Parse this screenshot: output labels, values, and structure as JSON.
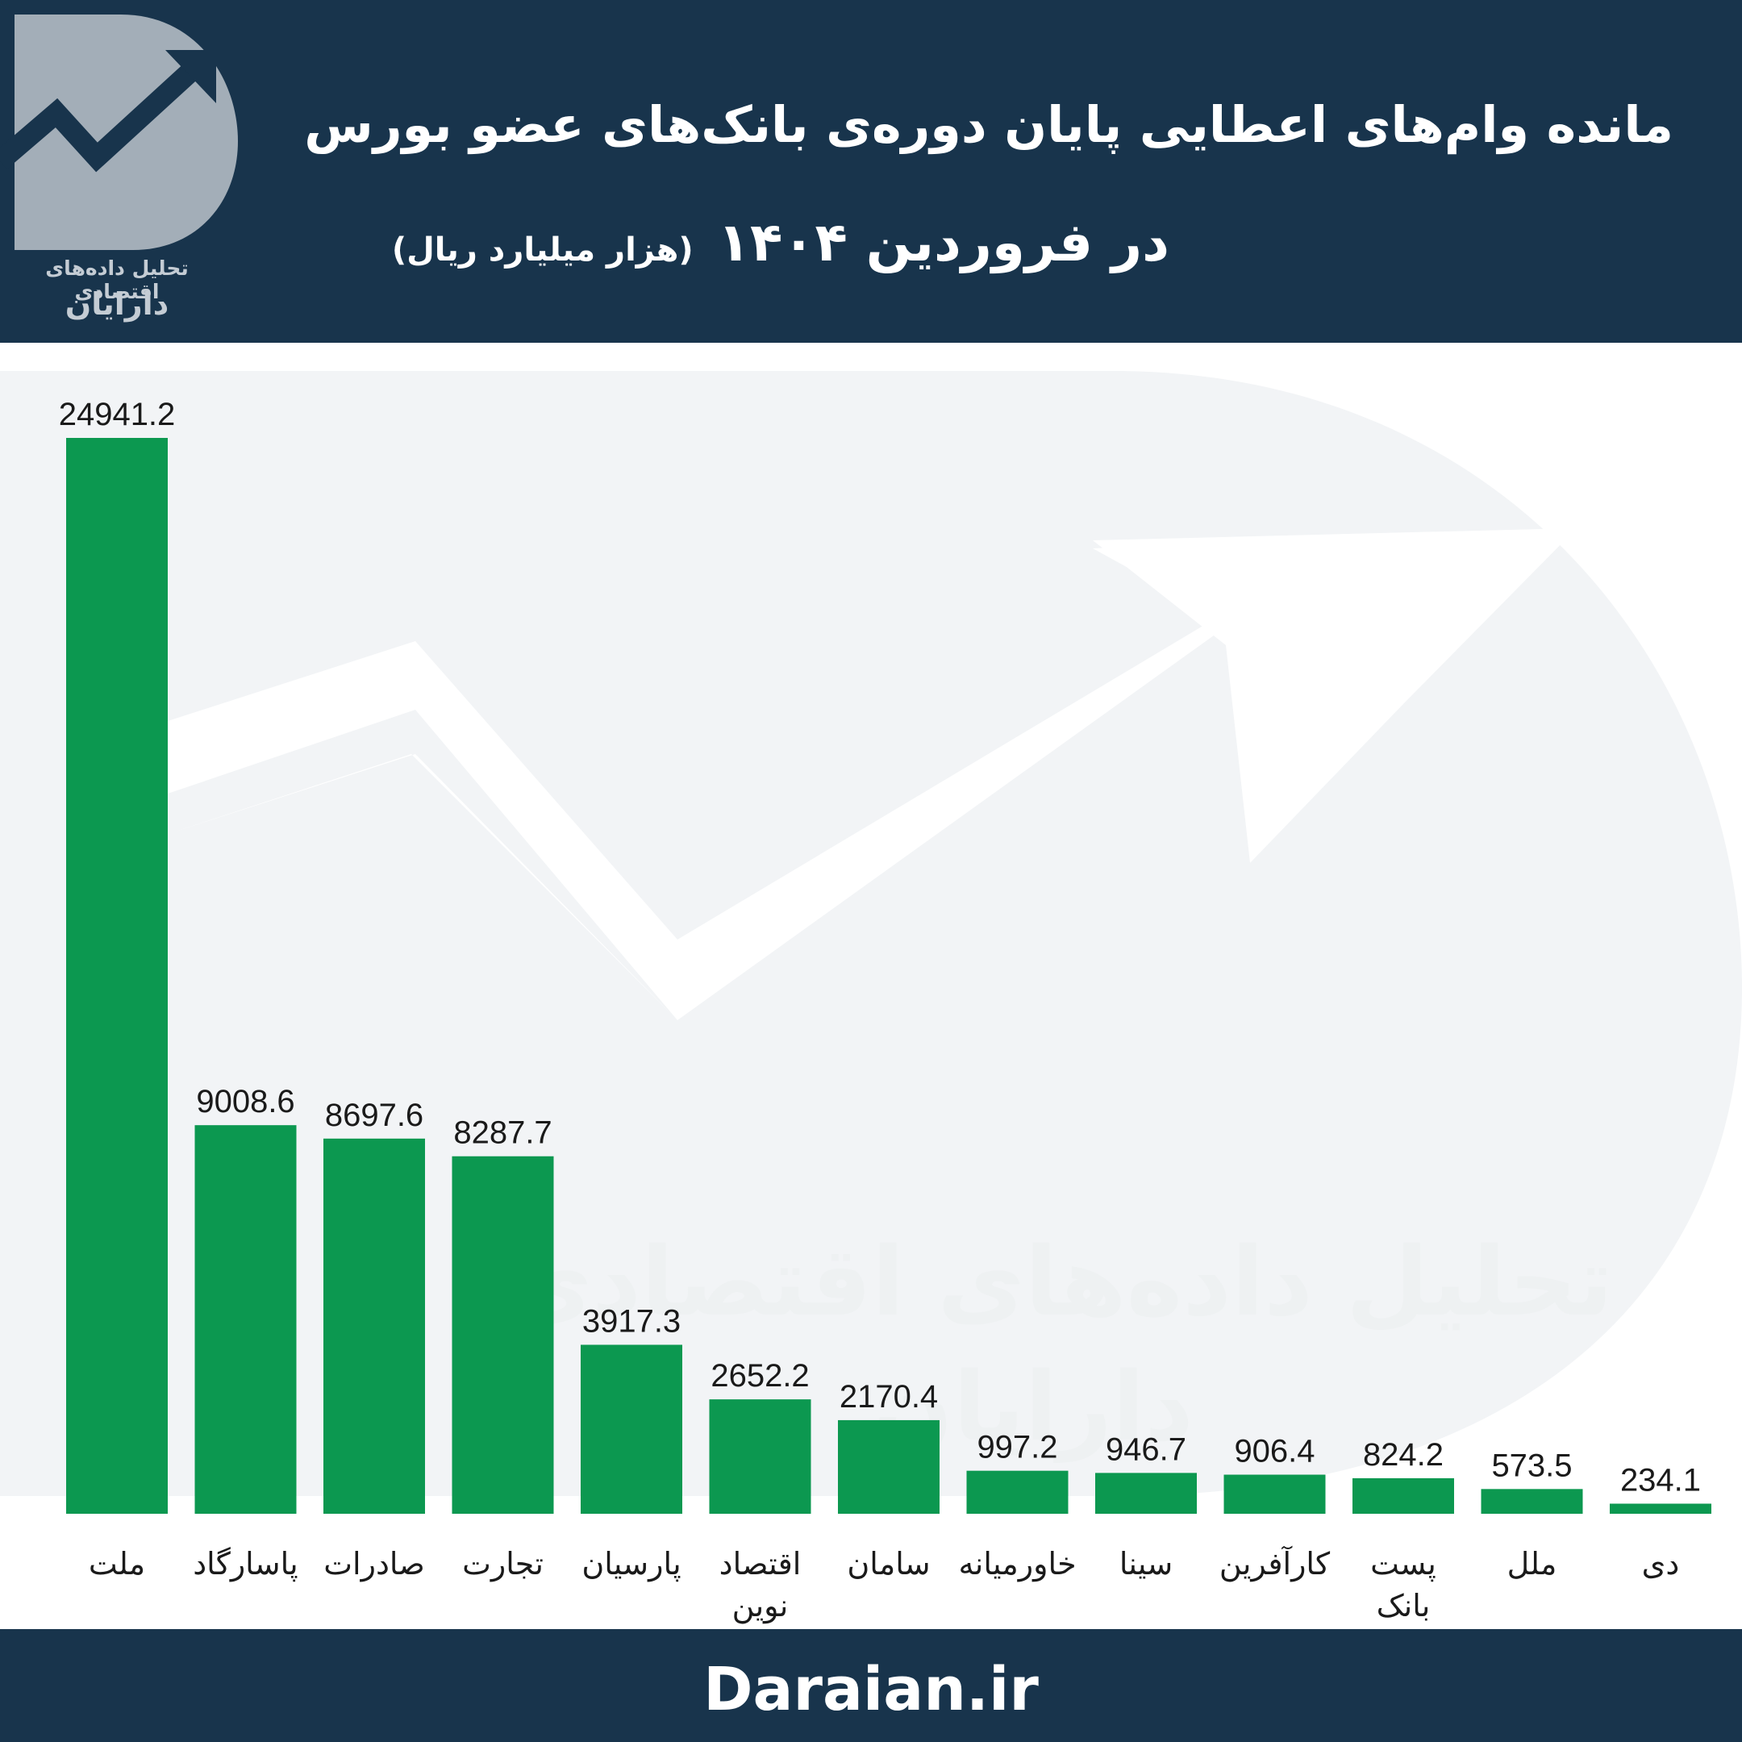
{
  "header": {
    "title": "مانده وام‌های اعطایی پایان دوره‌ی بانک‌های عضو بورس",
    "subtitle": "در فروردین ۱۴۰۴",
    "unit": "(هزار میلیارد ریال)"
  },
  "logo": {
    "subtitle": "تحلیل داده‌های اقتصادی",
    "name": "دارایان"
  },
  "watermark": {
    "text": "تحلیل داده‌های اقتصادی",
    "name": "دارایان"
  },
  "footer": {
    "site": "Daraian.ir"
  },
  "colors": {
    "header_bg": "#18344c",
    "bar": "#0c9850",
    "watermark": "#f2f4f6"
  },
  "chart_data": {
    "type": "bar",
    "title": "مانده وام‌های اعطایی پایان دوره‌ی بانک‌های عضو بورس",
    "xlabel": "",
    "ylabel": "",
    "categories": [
      [
        "ملت"
      ],
      [
        "پاسارگاد"
      ],
      [
        "صادرات"
      ],
      [
        "تجارت"
      ],
      [
        "پارسیان"
      ],
      [
        "اقتصاد",
        "نوین"
      ],
      [
        "سامان"
      ],
      [
        "خاورمیانه"
      ],
      [
        "سینا"
      ],
      [
        "کارآفرین"
      ],
      [
        "پست",
        "بانک"
      ],
      [
        "ملل"
      ],
      [
        "دی"
      ]
    ],
    "values": [
      24941.2,
      9008.6,
      8697.6,
      8287.7,
      3917.3,
      2652.2,
      2170.4,
      997.2,
      946.7,
      906.4,
      824.2,
      573.5,
      234.1
    ],
    "ylim": [
      0,
      24941.2
    ],
    "grid": false,
    "legend": "none"
  }
}
